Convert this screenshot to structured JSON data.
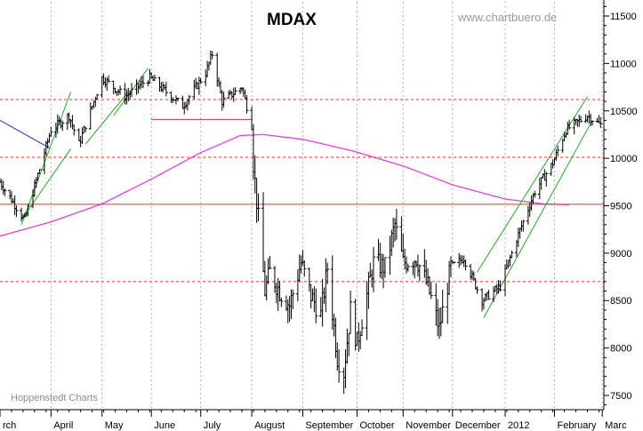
{
  "chart_data": {
    "type": "ohlc",
    "title": "MDAX",
    "watermark": "www.chartbuero.de",
    "source_note": "Hoppenstedt Charts",
    "ylim": [
      7350,
      11650
    ],
    "y_ticks": [
      11500,
      11000,
      10500,
      10000,
      9500,
      9000,
      8500,
      8000,
      7500
    ],
    "x_range": [
      "2011-03-01",
      "2012-03-02"
    ],
    "month_labels": [
      {
        "label": "rch",
        "date": "2011-03-01"
      },
      {
        "label": "April",
        "date": "2011-04-01"
      },
      {
        "label": "May",
        "date": "2011-05-02"
      },
      {
        "label": "June",
        "date": "2011-06-01"
      },
      {
        "label": "July",
        "date": "2011-07-01"
      },
      {
        "label": "August",
        "date": "2011-08-01"
      },
      {
        "label": "September",
        "date": "2011-09-01"
      },
      {
        "label": "October",
        "date": "2011-10-04"
      },
      {
        "label": "November",
        "date": "2011-11-01"
      },
      {
        "label": "December",
        "date": "2011-12-01"
      },
      {
        "label": "2012",
        "date": "2012-01-02"
      },
      {
        "label": "February",
        "date": "2012-02-01"
      },
      {
        "label": "Marc",
        "date": "2012-03-01"
      }
    ],
    "anchors": [
      [
        "2011-03-01",
        9750
      ],
      [
        "2011-03-16",
        9350
      ],
      [
        "2011-04-01",
        10300
      ],
      [
        "2011-04-12",
        10450
      ],
      [
        "2011-04-18",
        10150
      ],
      [
        "2011-05-02",
        10850
      ],
      [
        "2011-05-16",
        10650
      ],
      [
        "2011-05-31",
        10850
      ],
      [
        "2011-06-20",
        10550
      ],
      [
        "2011-07-04",
        10900
      ],
      [
        "2011-07-08",
        11100
      ],
      [
        "2011-07-14",
        10600
      ],
      [
        "2011-07-26",
        10750
      ],
      [
        "2011-08-01",
        10350
      ],
      [
        "2011-08-02",
        9950
      ],
      [
        "2011-08-04",
        9550
      ],
      [
        "2011-08-09",
        8600
      ],
      [
        "2011-08-12",
        8800
      ],
      [
        "2011-08-18",
        8600
      ],
      [
        "2011-08-24",
        8450
      ],
      [
        "2011-08-31",
        8900
      ],
      [
        "2011-09-06",
        8550
      ],
      [
        "2011-09-12",
        8350
      ],
      [
        "2011-09-16",
        8850
      ],
      [
        "2011-09-22",
        7900
      ],
      [
        "2011-09-26",
        7750
      ],
      [
        "2011-09-30",
        8400
      ],
      [
        "2011-10-04",
        8050
      ],
      [
        "2011-10-14",
        8900
      ],
      [
        "2011-10-21",
        8850
      ],
      [
        "2011-10-27",
        9300
      ],
      [
        "2011-11-01",
        8900
      ],
      [
        "2011-11-09",
        8950
      ],
      [
        "2011-11-16",
        8650
      ],
      [
        "2011-11-23",
        8200
      ],
      [
        "2011-11-30",
        8850
      ],
      [
        "2011-12-08",
        8950
      ],
      [
        "2011-12-19",
        8500
      ],
      [
        "2011-12-30",
        8650
      ],
      [
        "2012-01-09",
        9150
      ],
      [
        "2012-01-20",
        9650
      ],
      [
        "2012-01-31",
        9950
      ],
      [
        "2012-02-08",
        10300
      ],
      [
        "2012-02-21",
        10450
      ],
      [
        "2012-02-29",
        10350
      ]
    ],
    "moving_average": [
      [
        "2011-03-01",
        9180
      ],
      [
        "2011-04-01",
        9330
      ],
      [
        "2011-05-02",
        9520
      ],
      [
        "2011-06-01",
        9780
      ],
      [
        "2011-07-01",
        10060
      ],
      [
        "2011-07-25",
        10240
      ],
      [
        "2011-08-08",
        10250
      ],
      [
        "2011-09-01",
        10200
      ],
      [
        "2011-10-01",
        10080
      ],
      [
        "2011-11-01",
        9920
      ],
      [
        "2011-12-01",
        9720
      ],
      [
        "2012-01-02",
        9570
      ],
      [
        "2012-01-25",
        9520
      ],
      [
        "2012-02-10",
        9510
      ]
    ],
    "horizontal_lines": [
      {
        "value": 10620,
        "style": "dashed",
        "color": "#e03030"
      },
      {
        "value": 10010,
        "style": "dashed",
        "color": "#e03030"
      },
      {
        "value": 9515,
        "style": "solid",
        "color": "#e03030"
      },
      {
        "value": 8700,
        "style": "dashed",
        "color": "#e03030"
      },
      {
        "value": 10410,
        "style": "solid",
        "color": "#e03030",
        "from": "2011-06-01",
        "to": "2011-08-01"
      }
    ],
    "trend_lines": [
      {
        "color": "#22aa22",
        "points": [
          [
            "2011-03-14",
            9300
          ],
          [
            "2011-04-13",
            10700
          ]
        ]
      },
      {
        "color": "#22aa22",
        "points": [
          [
            "2011-03-14",
            9350
          ],
          [
            "2011-04-13",
            10100
          ]
        ]
      },
      {
        "color": "#22aa22",
        "points": [
          [
            "2011-04-22",
            10150
          ],
          [
            "2011-05-18",
            10700
          ]
        ]
      },
      {
        "color": "#22aa22",
        "points": [
          [
            "2011-05-09",
            10450
          ],
          [
            "2011-05-30",
            10950
          ]
        ]
      },
      {
        "color": "#22aa22",
        "points": [
          [
            "2011-12-16",
            8800
          ],
          [
            "2012-02-21",
            10650
          ]
        ]
      },
      {
        "color": "#22aa22",
        "points": [
          [
            "2011-12-20",
            8320
          ],
          [
            "2012-02-24",
            10400
          ]
        ]
      },
      {
        "color": "#2233aa",
        "points": [
          [
            "2011-03-01",
            10400
          ],
          [
            "2011-03-31",
            10110
          ]
        ]
      }
    ],
    "colors": {
      "bars": "#000000",
      "moving_average": "#e040e0",
      "grid": "#b0b0b0",
      "levels": "#e03030",
      "trend": "#22aa22"
    }
  }
}
